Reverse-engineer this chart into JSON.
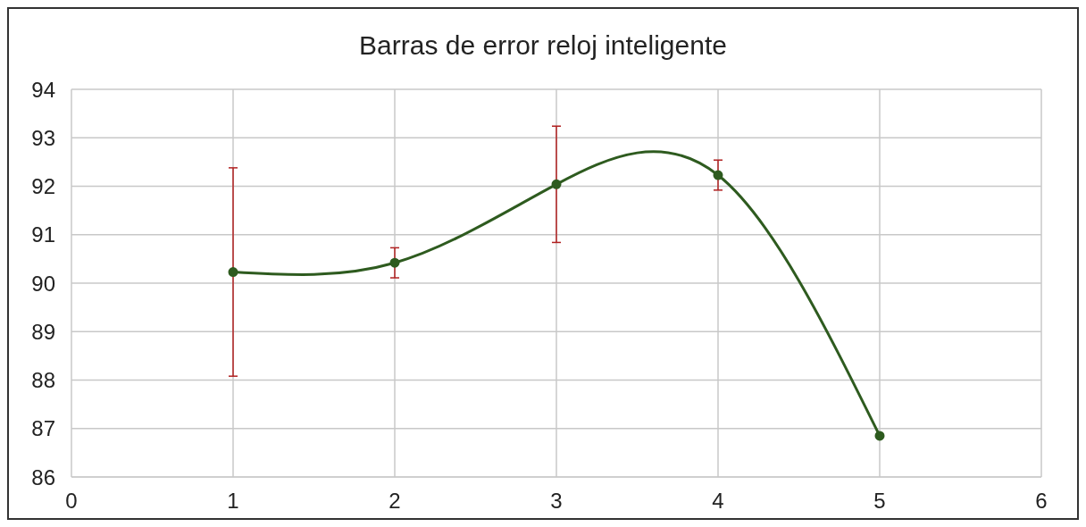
{
  "chart_data": {
    "type": "line",
    "title": "Barras de error reloj inteligente",
    "x": [
      1,
      2,
      3,
      4,
      5
    ],
    "series": [
      {
        "color": "#2e5b1f",
        "values": [
          90.23,
          90.42,
          92.04,
          92.23,
          86.85
        ],
        "errors": [
          2.15,
          0.31,
          1.2,
          0.31,
          0
        ]
      }
    ],
    "xlim": [
      0,
      6
    ],
    "xticks": [
      0,
      1,
      2,
      3,
      4,
      5,
      6
    ],
    "ylim": [
      86,
      94
    ],
    "yticks": [
      86,
      87,
      88,
      89,
      90,
      91,
      92,
      93,
      94
    ],
    "grid": true,
    "marker": "circle",
    "line_style": "solid",
    "legend": false
  }
}
